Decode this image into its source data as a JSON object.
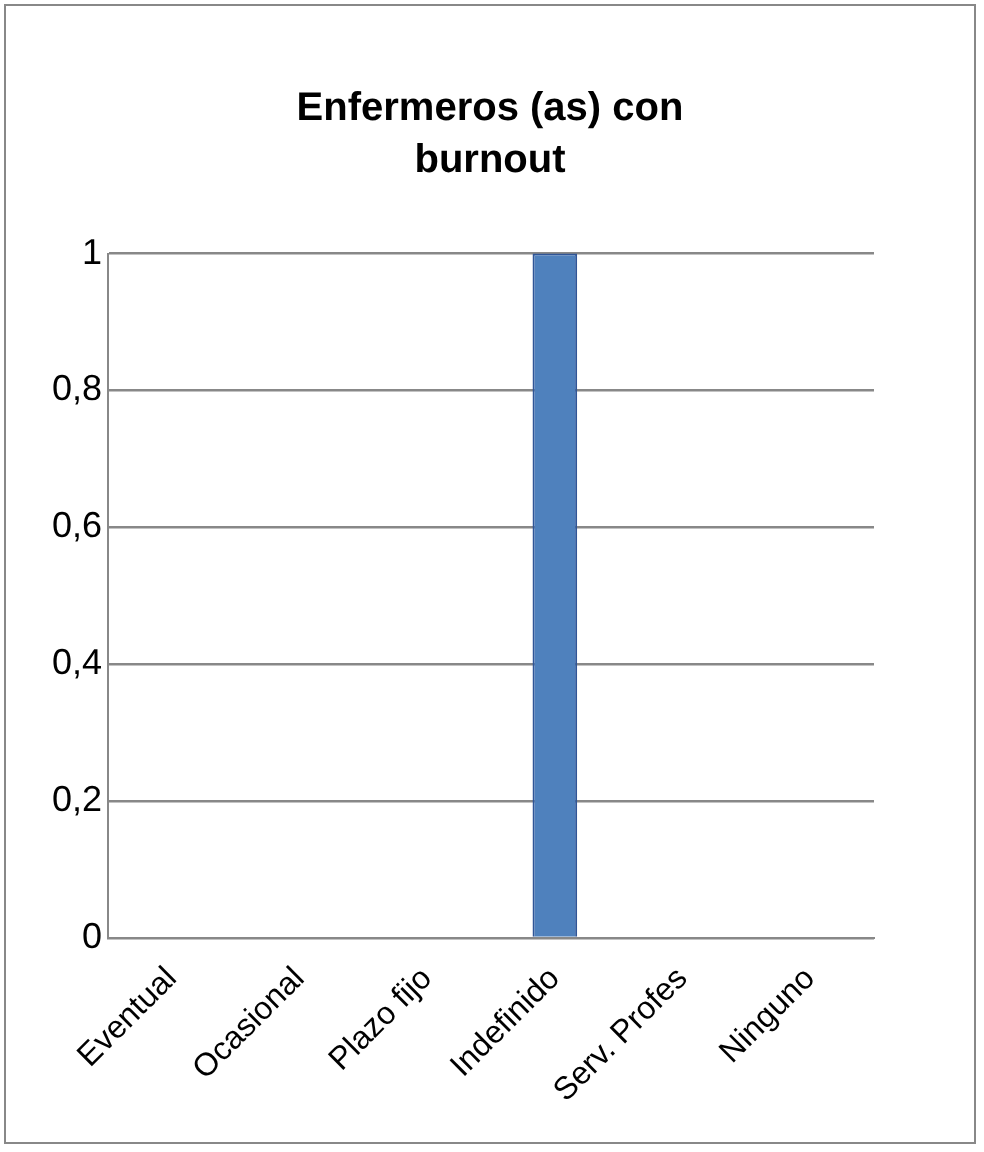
{
  "chart_data": {
    "type": "bar",
    "title": "Enfermeros (as) con burnout",
    "categories": [
      "Eventual",
      "Ocasional",
      "Plazo fijo",
      "Indefinido",
      "Serv. Profes",
      "Ninguno"
    ],
    "values": [
      0,
      0,
      0,
      1,
      0,
      0
    ],
    "color": "#4f81bd",
    "ylim": [
      0,
      1
    ],
    "yticks": [
      {
        "value": 0,
        "label": "0"
      },
      {
        "value": 0.2,
        "label": "0,2"
      },
      {
        "value": 0.4,
        "label": "0,4"
      },
      {
        "value": 0.6,
        "label": "0,6"
      },
      {
        "value": 0.8,
        "label": "0,8"
      },
      {
        "value": 1,
        "label": "1"
      }
    ],
    "grid": true
  }
}
